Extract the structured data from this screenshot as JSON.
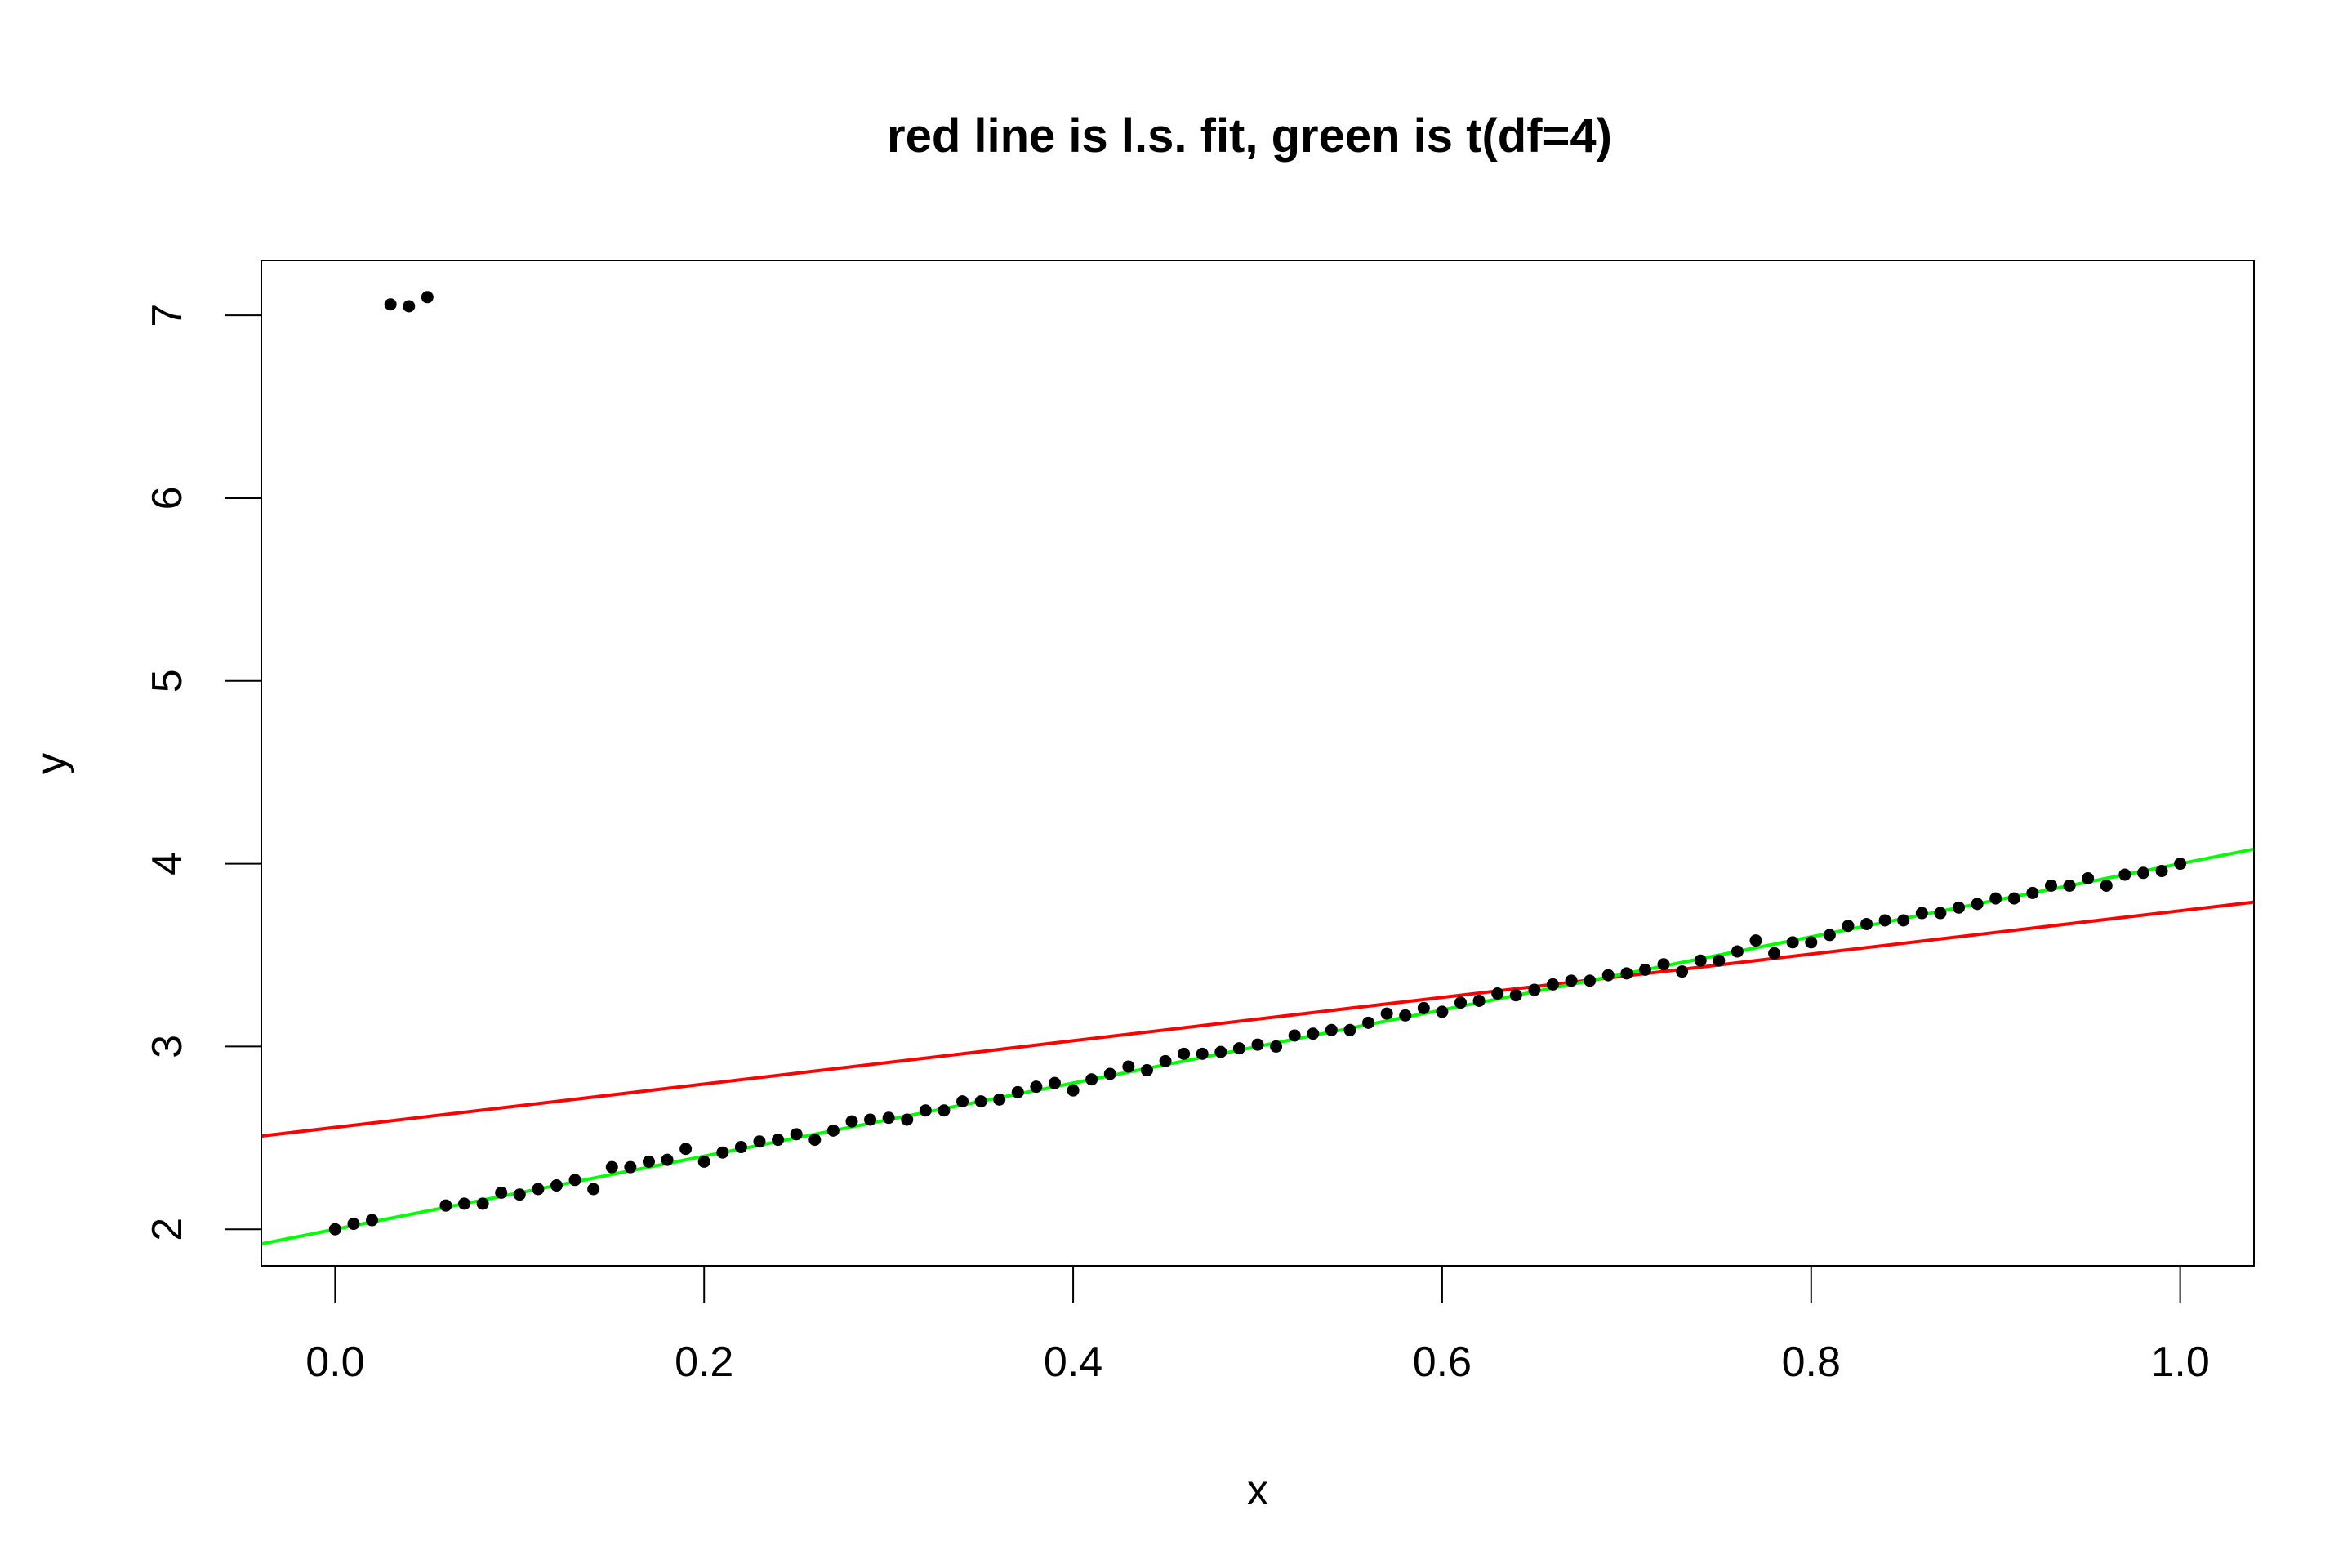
{
  "chart_data": {
    "type": "scatter",
    "title": "red line is l.s. fit, green is t(df=4)",
    "xlabel": "x",
    "ylabel": "y",
    "xlim": [
      -0.04,
      1.04
    ],
    "ylim": [
      1.8,
      7.3
    ],
    "x_ticks": [
      0,
      0.2,
      0.4,
      0.6,
      0.8,
      1
    ],
    "x_tick_labels": [
      "0.0",
      "0.2",
      "0.4",
      "0.6",
      "0.8",
      "1.0"
    ],
    "y_ticks": [
      2,
      3,
      4,
      5,
      6,
      7
    ],
    "y_tick_labels": [
      "2",
      "3",
      "4",
      "5",
      "6",
      "7"
    ],
    "grid": false,
    "legend": "none",
    "points": {
      "color": "#000000",
      "x": [
        0,
        0.01,
        0.02,
        0.03,
        0.04,
        0.05,
        0.06,
        0.07,
        0.08,
        0.09,
        0.1,
        0.11,
        0.12,
        0.13,
        0.14,
        0.15,
        0.16,
        0.17,
        0.18,
        0.19,
        0.2,
        0.21,
        0.22,
        0.23,
        0.24,
        0.25,
        0.26,
        0.27,
        0.28,
        0.29,
        0.3,
        0.31,
        0.32,
        0.33,
        0.34,
        0.35,
        0.36,
        0.37,
        0.38,
        0.39,
        0.4,
        0.41,
        0.42,
        0.43,
        0.44,
        0.45,
        0.46,
        0.47,
        0.48,
        0.49,
        0.5,
        0.51,
        0.52,
        0.53,
        0.54,
        0.55,
        0.56,
        0.57,
        0.58,
        0.59,
        0.6,
        0.61,
        0.62,
        0.63,
        0.64,
        0.65,
        0.66,
        0.67,
        0.68,
        0.69,
        0.7,
        0.71,
        0.72,
        0.73,
        0.74,
        0.75,
        0.76,
        0.77,
        0.78,
        0.79,
        0.8,
        0.81,
        0.82,
        0.83,
        0.84,
        0.85,
        0.86,
        0.87,
        0.88,
        0.89,
        0.9,
        0.91,
        0.92,
        0.93,
        0.94,
        0.95,
        0.96,
        0.97,
        0.98,
        0.99,
        1
      ],
      "y": [
        2.0,
        2.03,
        2.05,
        7.06,
        7.05,
        7.1,
        2.13,
        2.14,
        2.14,
        2.2,
        2.19,
        2.22,
        2.24,
        2.27,
        2.22,
        2.34,
        2.34,
        2.37,
        2.38,
        2.44,
        2.37,
        2.42,
        2.45,
        2.48,
        2.49,
        2.52,
        2.49,
        2.54,
        2.59,
        2.6,
        2.61,
        2.6,
        2.65,
        2.65,
        2.7,
        2.7,
        2.71,
        2.75,
        2.78,
        2.8,
        2.76,
        2.82,
        2.85,
        2.89,
        2.87,
        2.92,
        2.96,
        2.96,
        2.97,
        2.99,
        3.01,
        3.0,
        3.06,
        3.07,
        3.09,
        3.09,
        3.13,
        3.18,
        3.17,
        3.21,
        3.19,
        3.24,
        3.25,
        3.29,
        3.28,
        3.31,
        3.34,
        3.36,
        3.36,
        3.39,
        3.4,
        3.42,
        3.45,
        3.41,
        3.47,
        3.47,
        3.52,
        3.58,
        3.51,
        3.57,
        3.57,
        3.61,
        3.66,
        3.67,
        3.69,
        3.69,
        3.73,
        3.73,
        3.76,
        3.78,
        3.81,
        3.81,
        3.84,
        3.88,
        3.88,
        3.92,
        3.88,
        3.94,
        3.95,
        3.96,
        4.0
      ]
    },
    "lines": [
      {
        "color": "#ff0000",
        "x": [
          -0.04,
          1.04
        ],
        "y": [
          2.51,
          3.79
        ]
      },
      {
        "color": "#00ff00",
        "x": [
          -0.04,
          1.04
        ],
        "y": [
          1.92,
          4.08
        ]
      }
    ]
  }
}
